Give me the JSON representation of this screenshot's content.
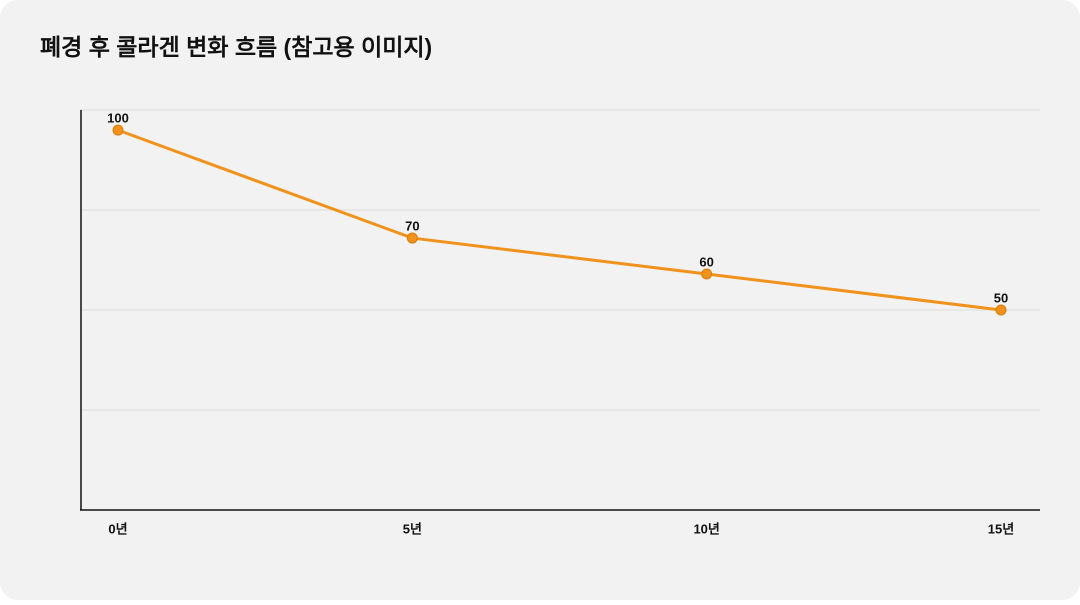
{
  "chart_data": {
    "type": "line",
    "title": "폐경 후 콜라겐 변화 흐름 (참고용 이미지)",
    "categories": [
      "0년",
      "5년",
      "10년",
      "15년"
    ],
    "values": [
      100,
      70,
      60,
      50
    ],
    "color": "#f0921c",
    "ylim": [
      -5.6,
      105.6
    ]
  }
}
